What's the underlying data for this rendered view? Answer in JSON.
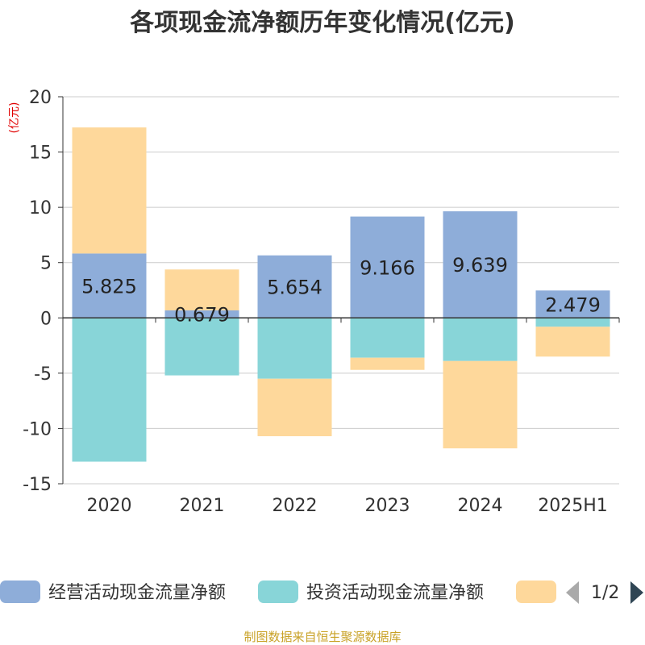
{
  "chart_data": {
    "type": "bar",
    "stacked": true,
    "title": "各项现金流净额历年变化情况(亿元)",
    "ylabel": "(亿元)",
    "categories": [
      "2020",
      "2021",
      "2022",
      "2023",
      "2024",
      "2025H1"
    ],
    "ylim": [
      -15,
      20
    ],
    "yticks": [
      20,
      15,
      10,
      5,
      0,
      -5,
      -10,
      -15
    ],
    "ytick_labels": [
      "20",
      "15",
      "10",
      "5",
      "0",
      "-5",
      "-10",
      "-15"
    ],
    "grid": true,
    "series": [
      {
        "name": "经营活动现金流量净额",
        "color": "#8eadd9",
        "values": [
          5.825,
          0.679,
          5.654,
          9.166,
          9.639,
          2.479
        ],
        "data_labels": [
          "5.825",
          "0.679",
          "5.654",
          "9.166",
          "9.639",
          "2.479"
        ]
      },
      {
        "name": "投资活动现金流量净额",
        "color": "#88d5d8",
        "values": [
          -13.0,
          -5.2,
          -5.5,
          -3.6,
          -3.9,
          -0.8
        ]
      },
      {
        "name": "",
        "color": "#fed89b",
        "values": [
          11.4,
          3.7,
          -5.2,
          -1.1,
          -7.9,
          -2.7
        ]
      }
    ],
    "legend": {
      "position": "bottom",
      "page": "1/2"
    }
  },
  "source": "制图数据来自恒生聚源数据库"
}
